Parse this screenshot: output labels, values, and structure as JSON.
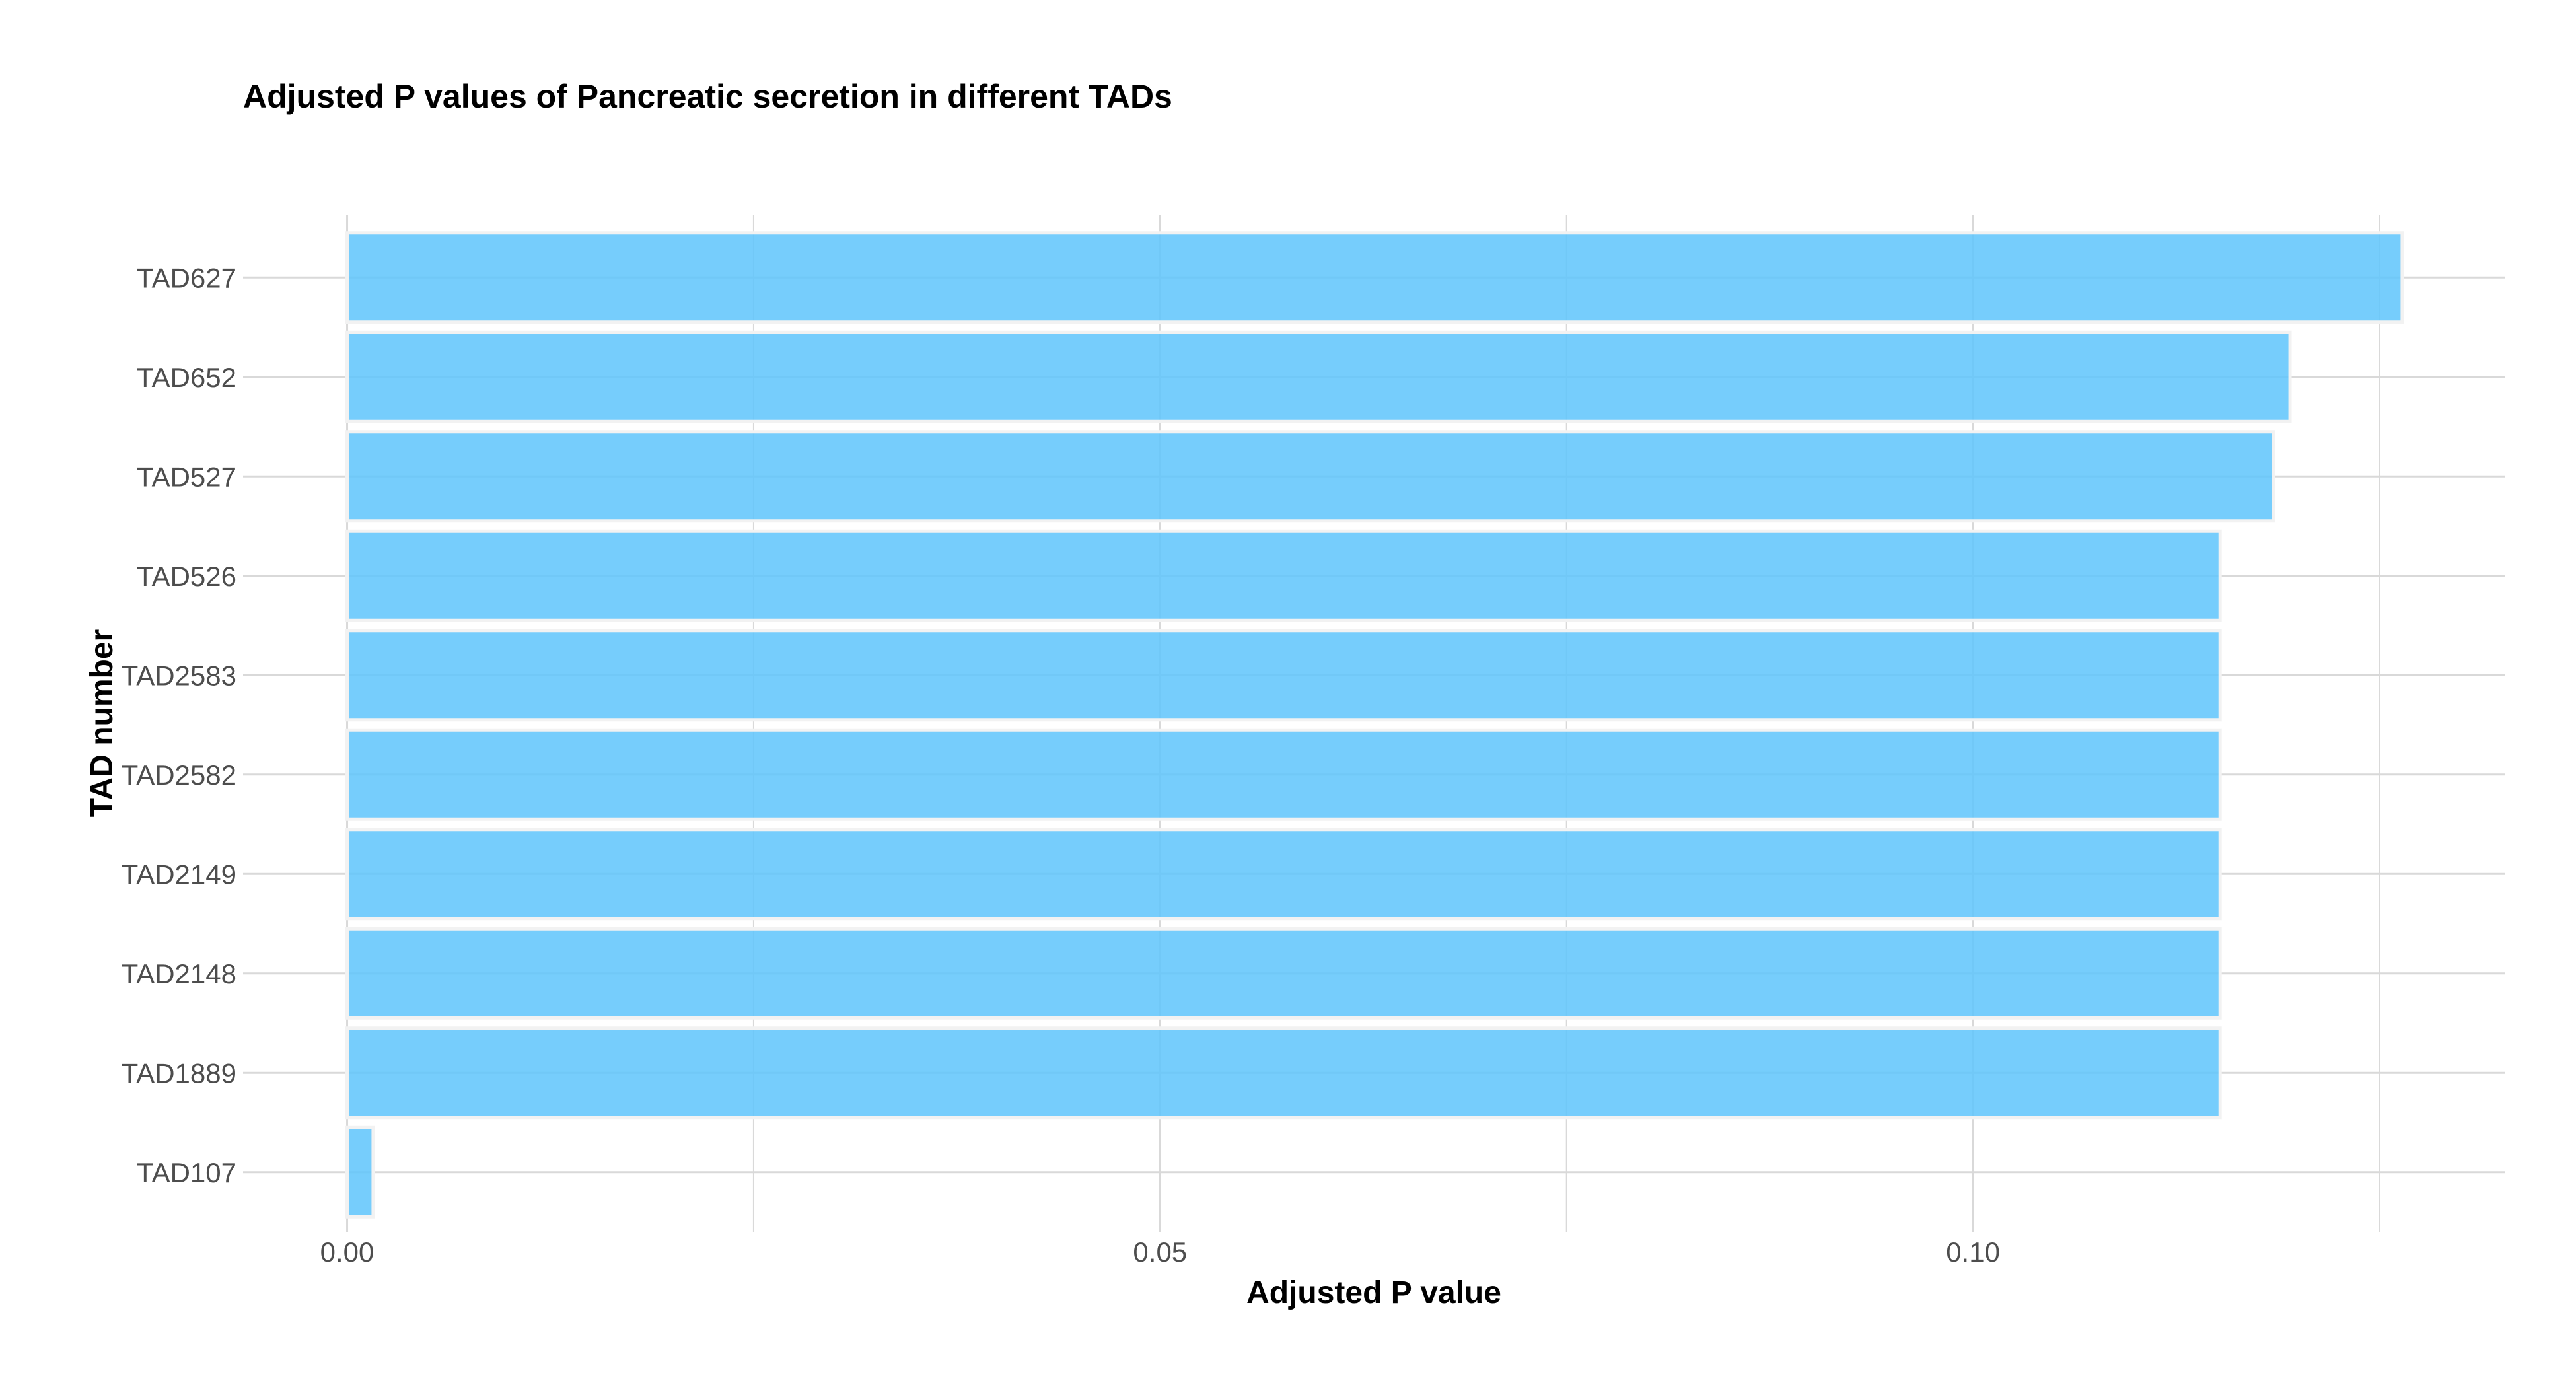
{
  "chart_data": {
    "type": "bar",
    "orientation": "horizontal",
    "title": "Adjusted P values of Pancreatic secretion in different TADs",
    "xlabel": "Adjusted P value",
    "ylabel": "TAD number",
    "categories": [
      "TAD627",
      "TAD652",
      "TAD527",
      "TAD526",
      "TAD2583",
      "TAD2582",
      "TAD2149",
      "TAD2148",
      "TAD1889",
      "TAD107"
    ],
    "values": [
      0.1264,
      0.1195,
      0.1185,
      0.1152,
      0.1152,
      0.1152,
      0.1152,
      0.1152,
      0.1152,
      0.0016
    ],
    "xticks": [
      "0.00",
      "0.05",
      "0.10"
    ],
    "xtick_values": [
      0,
      0.05,
      0.1
    ],
    "xlim": [
      -0.0064,
      0.1327
    ],
    "grid": true,
    "legend": "none",
    "bar_color": "#5ec4fb",
    "bar_outline": "#f2f2f2",
    "grid_color": "#d9d9d9"
  }
}
